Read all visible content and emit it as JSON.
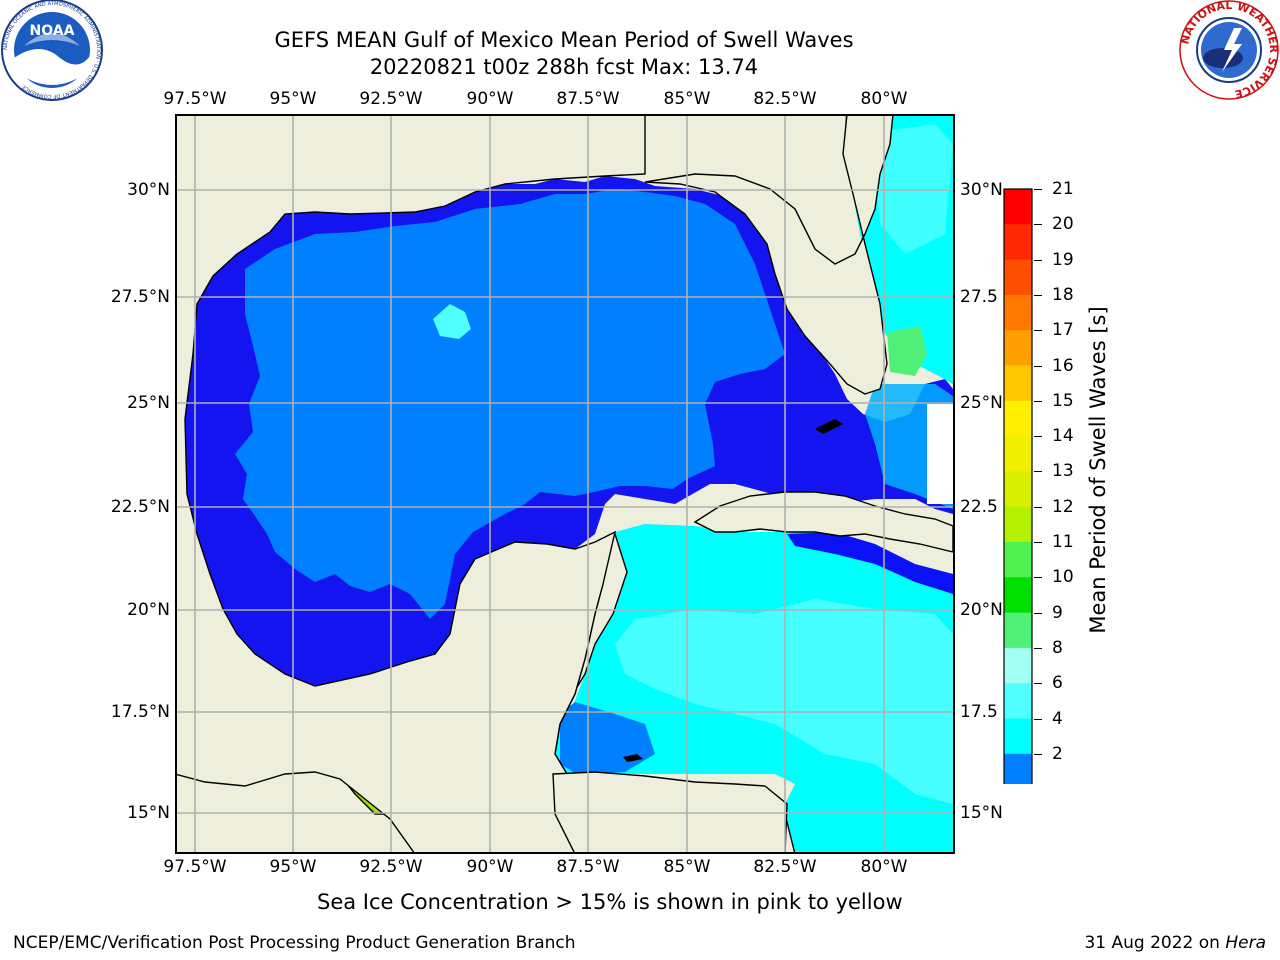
{
  "title": {
    "line1": "GEFS MEAN Gulf of Mexico Mean Period of Swell Waves",
    "line2": "20220821 t00z 288h fcst   Max: 13.74"
  },
  "map": {
    "lon_ticks": [
      "97.5°W",
      "95°W",
      "92.5°W",
      "90°W",
      "87.5°W",
      "85°W",
      "82.5°W",
      "80°W"
    ],
    "lat_ticks_left": [
      "30°N",
      "27.5°N",
      "25°N",
      "22.5°N",
      "20°N",
      "17.5°N",
      "15°N"
    ],
    "lat_ticks_right": [
      "30°N",
      "27.5",
      "25°N",
      "22.5",
      "20°N",
      "17.5",
      "15°N"
    ],
    "extent": {
      "lon_min": -98.0,
      "lon_max": -78.2,
      "lat_min": 14.0,
      "lat_max": 31.8
    },
    "colors": {
      "land": "#eeeedd",
      "grid": "#b0b0b0",
      "deep_blue": "#0a12f5",
      "mid_blue": "#0080ff",
      "cyan": "#00ffff",
      "light_cyan": "#50ffff"
    }
  },
  "colorbar": {
    "label": "Mean Period of Swell Waves [s]",
    "ticks": [
      "21",
      "20",
      "19",
      "18",
      "17",
      "16",
      "15",
      "14",
      "13",
      "12",
      "11",
      "10",
      "9",
      "8",
      "6",
      "4",
      "2"
    ],
    "colors": [
      "#ff0000",
      "#ff2800",
      "#ff5000",
      "#ff7800",
      "#ffa000",
      "#ffc800",
      "#fff000",
      "#f0f000",
      "#d8f000",
      "#b4f000",
      "#50f050",
      "#00e000",
      "#50f078",
      "#a0fff0",
      "#50ffff",
      "#00ffff",
      "#0080ff"
    ],
    "extend_color": "#1414f0"
  },
  "caption": "Sea Ice Concentration > 15% is shown in pink to yellow",
  "footer": {
    "left": "NCEP/EMC/Verification Post Processing Product Generation Branch",
    "right_prefix": "31 Aug 2022 on ",
    "right_host": "Hera"
  },
  "logos": {
    "noaa_text": "NOAA",
    "noaa_ring": "NATIONAL OCEANIC AND ATMOSPHERIC ADMINISTRATION · U.S. DEPARTMENT OF COMMERCE",
    "nws_ring": "NATIONAL WEATHER SERVICE"
  }
}
